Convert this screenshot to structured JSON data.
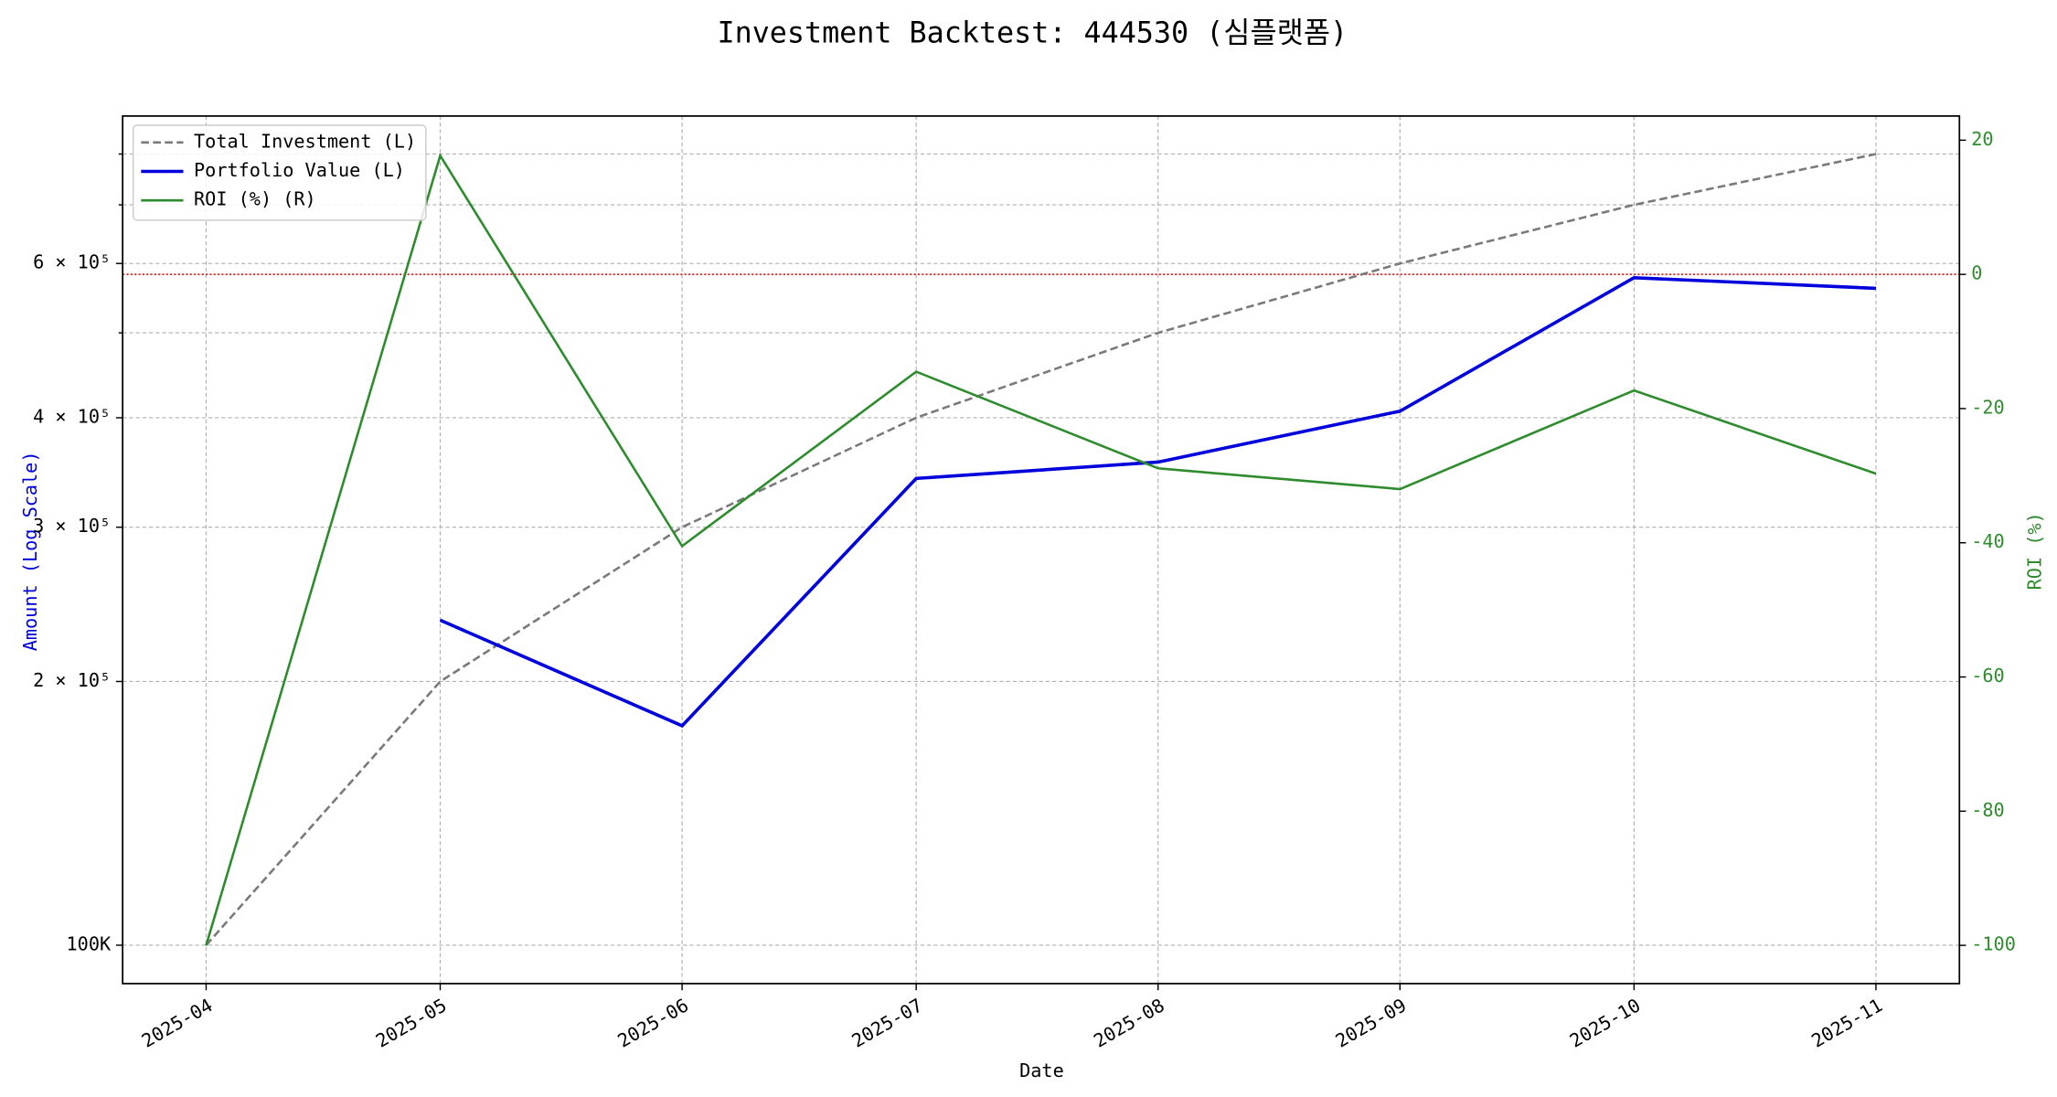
{
  "chart_data": {
    "type": "line",
    "title": "Investment Backtest: 444530 (심플랫폼)",
    "x_label": "Date",
    "y_label": "Amount (Log Scale)",
    "y2_label": "ROI (%)",
    "x": [
      "2025-04",
      "2025-05",
      "2025-06",
      "2025-07",
      "2025-08",
      "2025-09",
      "2025-10",
      "2025-11"
    ],
    "xticks": [
      "2025-04",
      "2025-05",
      "2025-06",
      "2025-07",
      "2025-08",
      "2025-09",
      "2025-10",
      "2025-11"
    ],
    "log_scale_y": true,
    "ylim": [
      90400,
      884000
    ],
    "yticks": [
      {
        "value": 100000,
        "label": "100K"
      },
      {
        "value": 200000,
        "label": "2 × 10⁵"
      },
      {
        "value": 300000,
        "label": "3 × 10⁵"
      },
      {
        "value": 400000,
        "label": "4 × 10⁵"
      },
      {
        "value": 600000,
        "label": "6 × 10⁵"
      }
    ],
    "yminor_ticks": [
      500000,
      700000,
      800000
    ],
    "y2lim": [
      -105.7,
      23.6
    ],
    "y2ticks": [
      -100,
      -80,
      -60,
      -40,
      -20,
      0,
      20
    ],
    "grid": true,
    "legend": "upper left",
    "reference_line": {
      "value": 0,
      "axis": "y2",
      "color": "#e00000"
    },
    "series": [
      {
        "name": "Total Investment (L)",
        "color": "#7a7a7a",
        "dashed": true,
        "values": [
          100000,
          200000,
          300000,
          400000,
          500000,
          600000,
          700000,
          800000
        ]
      },
      {
        "name": "Portfolio Value (L)",
        "color": "#0000dd",
        "values": [
          null,
          235000,
          178000,
          341000,
          356000,
          407000,
          578000,
          562000
        ]
      },
      {
        "name": "ROI (%) (R)",
        "color": "#2e8b2e",
        "axis": "y2",
        "values": [
          -100,
          17.7,
          -40.5,
          -14.5,
          -28.9,
          -32,
          -17.3,
          -29.7
        ]
      }
    ]
  }
}
